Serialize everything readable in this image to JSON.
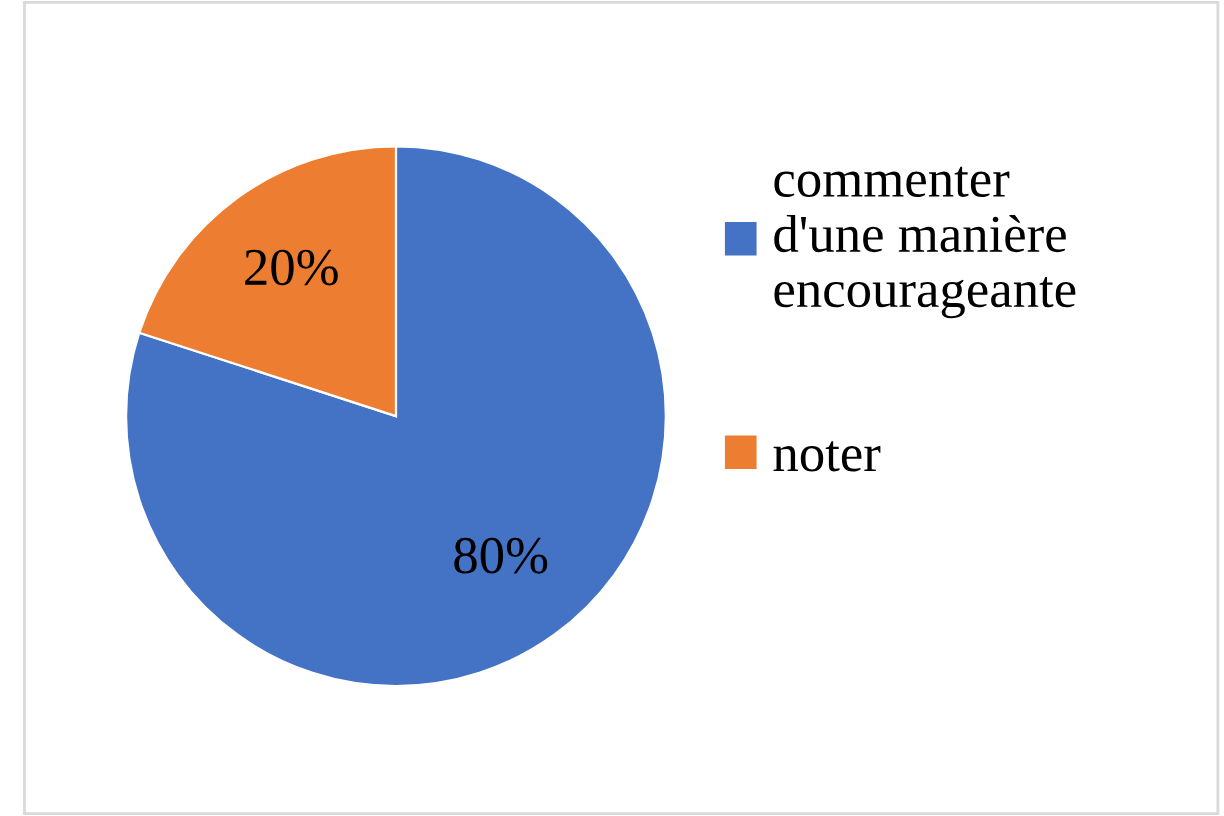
{
  "chart_data": {
    "type": "pie",
    "categories": [
      "commenter d'une manière encourageante",
      "noter"
    ],
    "values": [
      80,
      20
    ],
    "colors": [
      "#4472c4",
      "#ed7d31"
    ],
    "value_labels": [
      "80%",
      "20%"
    ],
    "legend": "right"
  }
}
